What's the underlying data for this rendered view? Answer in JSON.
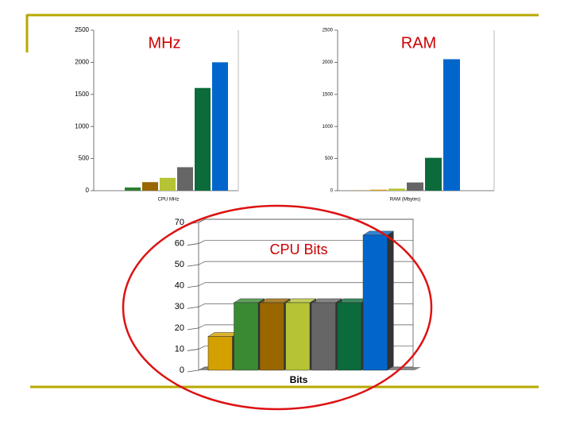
{
  "chart_data": [
    {
      "type": "bar",
      "title": "MHz",
      "xlabel": "CPU MHz",
      "categories": [
        null,
        null,
        null,
        null,
        null,
        null
      ],
      "values": [
        50,
        133,
        200,
        366,
        1600,
        2000
      ],
      "colors": [
        "#2e7d32",
        "#996600",
        "#b5c334",
        "#666666",
        "#0b6b3a",
        "#0066cc"
      ],
      "ylim": [
        0,
        2500
      ],
      "yticks": [
        0,
        500,
        1000,
        1500,
        2000,
        2500
      ],
      "grid": false,
      "three_d": false
    },
    {
      "type": "bar",
      "title": "RAM",
      "xlabel": "RAM (Mbytes)",
      "categories": [
        null,
        null,
        null,
        null,
        null,
        null,
        null
      ],
      "values": [
        1,
        4,
        16,
        32,
        128,
        512,
        2048
      ],
      "colors": [
        "#2e7d32",
        "#996600",
        "#d4a017",
        "#b5c334",
        "#666666",
        "#0b6b3a",
        "#0066cc"
      ],
      "ylim": [
        0,
        2500
      ],
      "yticks": [
        0,
        500,
        1000,
        1500,
        2000,
        2500
      ],
      "grid": false,
      "three_d": false
    },
    {
      "type": "bar",
      "title": "CPU Bits",
      "xlabel": "Bits",
      "categories": [
        null,
        null,
        null,
        null,
        null,
        null,
        null
      ],
      "values": [
        16,
        32,
        32,
        32,
        32,
        32,
        64
      ],
      "colors": [
        "#d4a000",
        "#3a8a34",
        "#996600",
        "#b5c334",
        "#666666",
        "#0b6b3a",
        "#0066cc"
      ],
      "ylim": [
        0,
        70
      ],
      "yticks": [
        0,
        10,
        20,
        30,
        40,
        50,
        60,
        70
      ],
      "grid": true,
      "three_d": true
    }
  ]
}
